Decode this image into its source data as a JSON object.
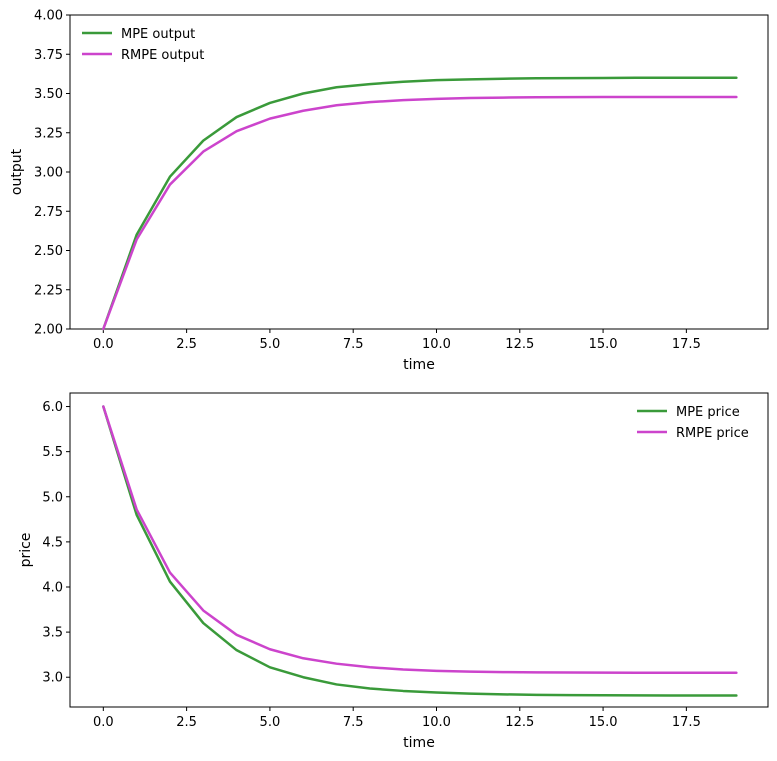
{
  "figure": {
    "background": "#ffffff"
  },
  "chart_data": [
    {
      "type": "line",
      "title": "",
      "xlabel": "time",
      "ylabel": "output",
      "xlim": [
        -1,
        19.95
      ],
      "ylim": [
        2.0,
        4.0
      ],
      "x_ticks": [
        0.0,
        2.5,
        5.0,
        7.5,
        10.0,
        12.5,
        15.0,
        17.5
      ],
      "x_tick_labels": [
        "0.0",
        "2.5",
        "5.0",
        "7.5",
        "10.0",
        "12.5",
        "15.0",
        "17.5"
      ],
      "y_ticks": [
        2.0,
        2.25,
        2.5,
        2.75,
        3.0,
        3.25,
        3.5,
        3.75,
        4.0
      ],
      "y_tick_labels": [
        "2.00",
        "2.25",
        "2.50",
        "2.75",
        "3.00",
        "3.25",
        "3.50",
        "3.75",
        "4.00"
      ],
      "legend_position": "top-left",
      "grid": false,
      "x": [
        0,
        1,
        2,
        3,
        4,
        5,
        6,
        7,
        8,
        9,
        10,
        11,
        12,
        13,
        14,
        15,
        16,
        17,
        18,
        19
      ],
      "series": [
        {
          "name": "MPE output",
          "color": "#3a9a3a",
          "values": [
            2.0,
            2.6,
            2.97,
            3.2,
            3.35,
            3.44,
            3.5,
            3.54,
            3.56,
            3.575,
            3.585,
            3.59,
            3.594,
            3.597,
            3.598,
            3.599,
            3.6,
            3.6,
            3.6,
            3.6
          ]
        },
        {
          "name": "RMPE output",
          "color": "#cc44cc",
          "values": [
            2.0,
            2.57,
            2.92,
            3.13,
            3.26,
            3.34,
            3.39,
            3.425,
            3.445,
            3.458,
            3.466,
            3.471,
            3.474,
            3.476,
            3.477,
            3.478,
            3.478,
            3.478,
            3.478,
            3.478
          ]
        }
      ]
    },
    {
      "type": "line",
      "title": "",
      "xlabel": "time",
      "ylabel": "price",
      "xlim": [
        -1,
        19.95
      ],
      "ylim": [
        2.67,
        6.15
      ],
      "x_ticks": [
        0.0,
        2.5,
        5.0,
        7.5,
        10.0,
        12.5,
        15.0,
        17.5
      ],
      "x_tick_labels": [
        "0.0",
        "2.5",
        "5.0",
        "7.5",
        "10.0",
        "12.5",
        "15.0",
        "17.5"
      ],
      "y_ticks": [
        3.0,
        3.5,
        4.0,
        4.5,
        5.0,
        5.5,
        6.0
      ],
      "y_tick_labels": [
        "3.0",
        "3.5",
        "4.0",
        "4.5",
        "5.0",
        "5.5",
        "6.0"
      ],
      "legend_position": "top-right",
      "grid": false,
      "x": [
        0,
        1,
        2,
        3,
        4,
        5,
        6,
        7,
        8,
        9,
        10,
        11,
        12,
        13,
        14,
        15,
        16,
        17,
        18,
        19
      ],
      "series": [
        {
          "name": "MPE price",
          "color": "#3a9a3a",
          "values": [
            6.0,
            4.8,
            4.06,
            3.6,
            3.3,
            3.11,
            3.0,
            2.92,
            2.875,
            2.848,
            2.83,
            2.818,
            2.81,
            2.805,
            2.802,
            2.8,
            2.799,
            2.798,
            2.798,
            2.798
          ]
        },
        {
          "name": "RMPE price",
          "color": "#cc44cc",
          "values": [
            6.0,
            4.86,
            4.16,
            3.74,
            3.47,
            3.31,
            3.21,
            3.15,
            3.11,
            3.085,
            3.07,
            3.062,
            3.057,
            3.054,
            3.052,
            3.051,
            3.05,
            3.05,
            3.05,
            3.05
          ]
        }
      ]
    }
  ]
}
